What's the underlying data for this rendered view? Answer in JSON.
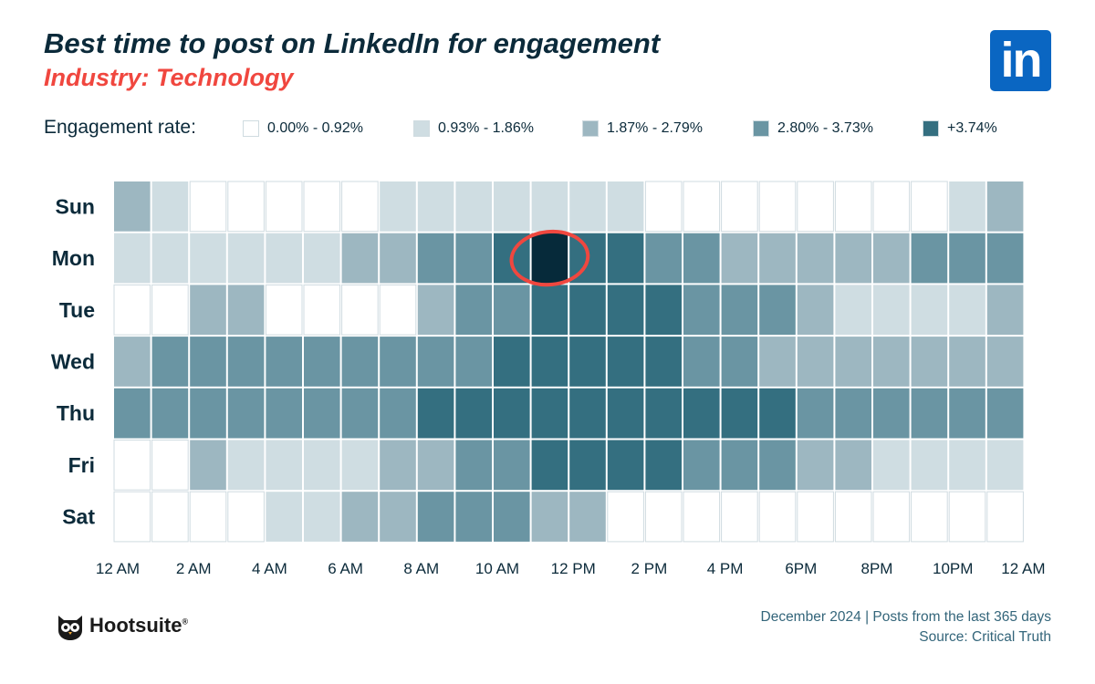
{
  "header": {
    "title": "Best time to post on LinkedIn for engagement",
    "subtitle": "Industry: Technology"
  },
  "brand_logo": {
    "icon": "linkedin-icon",
    "text": "in",
    "color": "#0a66c2"
  },
  "legend": {
    "label": "Engagement rate:",
    "items": [
      {
        "label": "0.00% - 0.92%",
        "color": "#ffffff"
      },
      {
        "label": "0.93% - 1.86%",
        "color": "#cfdde2"
      },
      {
        "label": "1.87% - 2.79%",
        "color": "#9db7c1"
      },
      {
        "label": "2.80% - 3.73%",
        "color": "#6a95a3"
      },
      {
        "label": "+3.74%",
        "color": "#346f80"
      }
    ]
  },
  "chart_data": {
    "type": "heatmap",
    "title": "Best time to post on LinkedIn for engagement",
    "subtitle": "Industry: Technology",
    "y_categories": [
      "Sun",
      "Mon",
      "Tue",
      "Wed",
      "Thu",
      "Fri",
      "Sat"
    ],
    "x_tick_labels": [
      "12 AM",
      "2 AM",
      "4 AM",
      "6 AM",
      "8 AM",
      "10 AM",
      "12 PM",
      "2 PM",
      "4 PM",
      "6PM",
      "8PM",
      "10PM",
      "12 AM"
    ],
    "hours_per_row": 24,
    "levels": [
      [
        2,
        1,
        0,
        0,
        0,
        0,
        0,
        1,
        1,
        1,
        1,
        1,
        1,
        1,
        0,
        0,
        0,
        0,
        0,
        0,
        0,
        0,
        1,
        2
      ],
      [
        1,
        1,
        1,
        1,
        1,
        1,
        2,
        2,
        3,
        3,
        4,
        5,
        4,
        4,
        3,
        3,
        2,
        2,
        2,
        2,
        2,
        3,
        3,
        3
      ],
      [
        0,
        0,
        2,
        2,
        0,
        0,
        0,
        0,
        2,
        3,
        3,
        4,
        4,
        4,
        4,
        3,
        3,
        3,
        2,
        1,
        1,
        1,
        1,
        2
      ],
      [
        2,
        3,
        3,
        3,
        3,
        3,
        3,
        3,
        3,
        3,
        4,
        4,
        4,
        4,
        4,
        3,
        3,
        2,
        2,
        2,
        2,
        2,
        2,
        2
      ],
      [
        3,
        3,
        3,
        3,
        3,
        3,
        3,
        3,
        4,
        4,
        4,
        4,
        4,
        4,
        4,
        4,
        4,
        4,
        3,
        3,
        3,
        3,
        3,
        3
      ],
      [
        0,
        0,
        2,
        1,
        1,
        1,
        1,
        2,
        2,
        3,
        3,
        4,
        4,
        4,
        4,
        3,
        3,
        3,
        2,
        2,
        1,
        1,
        1,
        1
      ],
      [
        0,
        0,
        0,
        0,
        1,
        1,
        2,
        2,
        3,
        3,
        3,
        2,
        2,
        0,
        0,
        0,
        0,
        0,
        0,
        0,
        0,
        0,
        0,
        0
      ]
    ],
    "level_labels": [
      "0.00% - 0.92%",
      "0.93% - 1.86%",
      "1.87% - 2.79%",
      "2.80% - 3.73%",
      "+3.74%",
      "peak"
    ],
    "level_colors": [
      "#ffffff",
      "#cfdde2",
      "#9db7c1",
      "#6a95a3",
      "#346f80",
      "#062a3a"
    ],
    "highlight": {
      "day": "Mon",
      "hour": 11,
      "circle_color": "#f0473f"
    }
  },
  "footer": {
    "brand": "Hootsuite",
    "brand_icon": "owl-icon",
    "note_line1": "December 2024 | Posts from the last 365 days",
    "note_line2": "Source: Critical Truth"
  }
}
